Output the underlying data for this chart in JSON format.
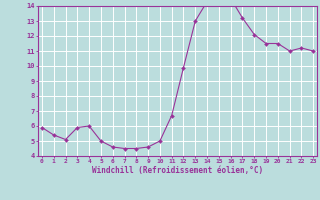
{
  "x": [
    0,
    1,
    2,
    3,
    4,
    5,
    6,
    7,
    8,
    9,
    10,
    11,
    12,
    13,
    14,
    15,
    16,
    17,
    18,
    19,
    20,
    21,
    22,
    23
  ],
  "y": [
    5.9,
    5.4,
    5.1,
    5.9,
    6.0,
    5.0,
    4.6,
    4.5,
    4.5,
    4.6,
    5.0,
    6.7,
    9.9,
    13.0,
    14.3,
    14.3,
    14.5,
    13.2,
    12.1,
    11.5,
    11.5,
    11.0,
    11.2,
    11.0
  ],
  "line_color": "#993399",
  "marker_color": "#993399",
  "bg_color": "#bbdddd",
  "grid_color": "#ffffff",
  "axis_color": "#993399",
  "xlabel": "Windchill (Refroidissement éolien,°C)",
  "xlim_min": -0.3,
  "xlim_max": 23.3,
  "ylim_min": 4,
  "ylim_max": 14,
  "yticks": [
    4,
    5,
    6,
    7,
    8,
    9,
    10,
    11,
    12,
    13,
    14
  ],
  "xticks": [
    0,
    1,
    2,
    3,
    4,
    5,
    6,
    7,
    8,
    9,
    10,
    11,
    12,
    13,
    14,
    15,
    16,
    17,
    18,
    19,
    20,
    21,
    22,
    23
  ]
}
